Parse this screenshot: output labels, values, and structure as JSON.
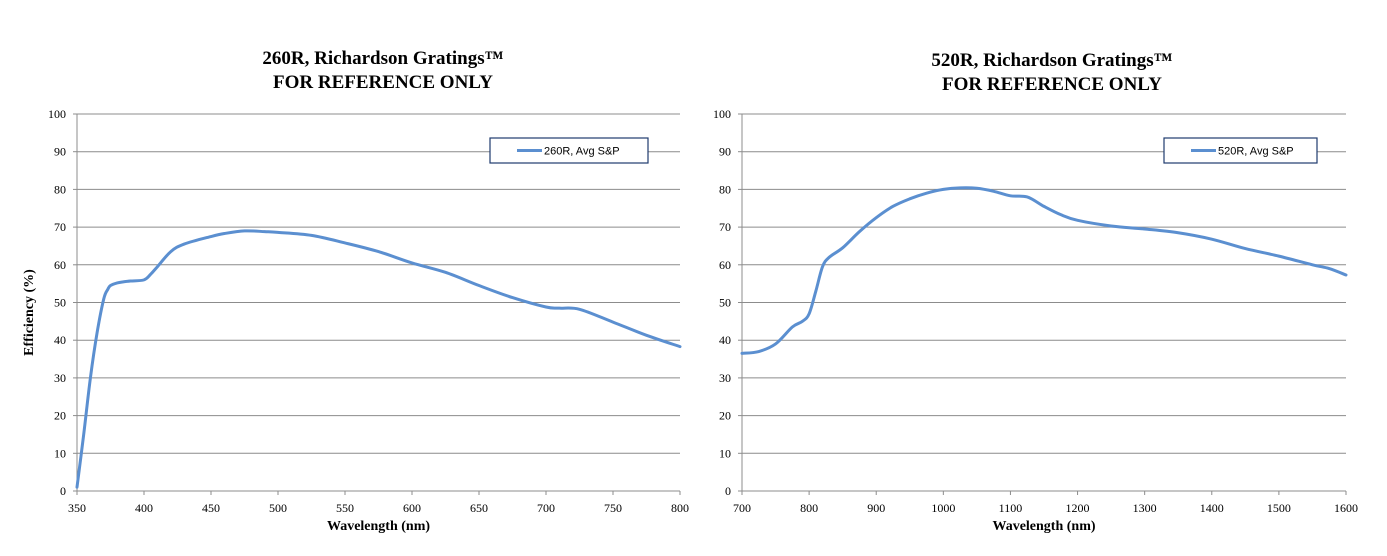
{
  "chart_data": [
    {
      "type": "line",
      "title": "260R, Richardson Gratings™",
      "subtitle": "FOR REFERENCE ONLY",
      "xlabel": "Wavelength (nm)",
      "ylabel": "Efficiency (%)",
      "xlim": [
        350,
        800
      ],
      "ylim": [
        0,
        100
      ],
      "xticks": [
        350,
        400,
        450,
        500,
        550,
        600,
        650,
        700,
        750,
        800
      ],
      "yticks": [
        0,
        10,
        20,
        30,
        40,
        50,
        60,
        70,
        80,
        90,
        100
      ],
      "grid": "horizontal",
      "legend_position": "top-right",
      "color": "#5b8fd0",
      "series": [
        {
          "name": "260R, Avg S&P",
          "x": [
            350,
            355,
            360,
            365,
            370,
            373,
            375,
            380,
            385,
            390,
            400,
            405,
            410,
            420,
            430,
            450,
            460,
            475,
            490,
            500,
            525,
            550,
            575,
            600,
            625,
            650,
            675,
            700,
            710,
            725,
            750,
            775,
            800
          ],
          "y": [
            1,
            15,
            30,
            42,
            51,
            53.5,
            54.5,
            55.2,
            55.5,
            55.7,
            56,
            57.5,
            59.5,
            63.5,
            65.5,
            67.5,
            68.3,
            69,
            68.8,
            68.6,
            67.8,
            65.8,
            63.5,
            60.5,
            58,
            54.5,
            51.3,
            48.8,
            48.5,
            48.2,
            44.8,
            41.3,
            38.3
          ]
        }
      ]
    },
    {
      "type": "line",
      "title": "520R, Richardson Gratings™",
      "subtitle": "FOR REFERENCE ONLY",
      "xlabel": "Wavelength (nm)",
      "ylabel": "",
      "xlim": [
        700,
        1600
      ],
      "ylim": [
        0,
        100
      ],
      "xticks": [
        700,
        800,
        900,
        1000,
        1100,
        1200,
        1300,
        1400,
        1500,
        1600
      ],
      "yticks": [
        0,
        10,
        20,
        30,
        40,
        50,
        60,
        70,
        80,
        90,
        100
      ],
      "grid": "horizontal",
      "legend_position": "top-right",
      "color": "#5b8fd0",
      "series": [
        {
          "name": "520R, Avg S&P",
          "x": [
            700,
            725,
            750,
            775,
            790,
            800,
            810,
            820,
            830,
            850,
            875,
            900,
            925,
            950,
            975,
            1000,
            1025,
            1050,
            1075,
            1100,
            1125,
            1150,
            1175,
            1200,
            1250,
            1300,
            1350,
            1400,
            1450,
            1500,
            1550,
            1575,
            1600
          ],
          "y": [
            36.5,
            37,
            39,
            43.5,
            45,
            47,
            53,
            59.5,
            62,
            64.5,
            68.8,
            72.5,
            75.5,
            77.5,
            79,
            80,
            80.4,
            80.3,
            79.5,
            78.3,
            78,
            75.5,
            73.3,
            71.8,
            70.3,
            69.5,
            68.5,
            66.8,
            64.3,
            62.3,
            60,
            59,
            57.3
          ]
        }
      ]
    }
  ]
}
